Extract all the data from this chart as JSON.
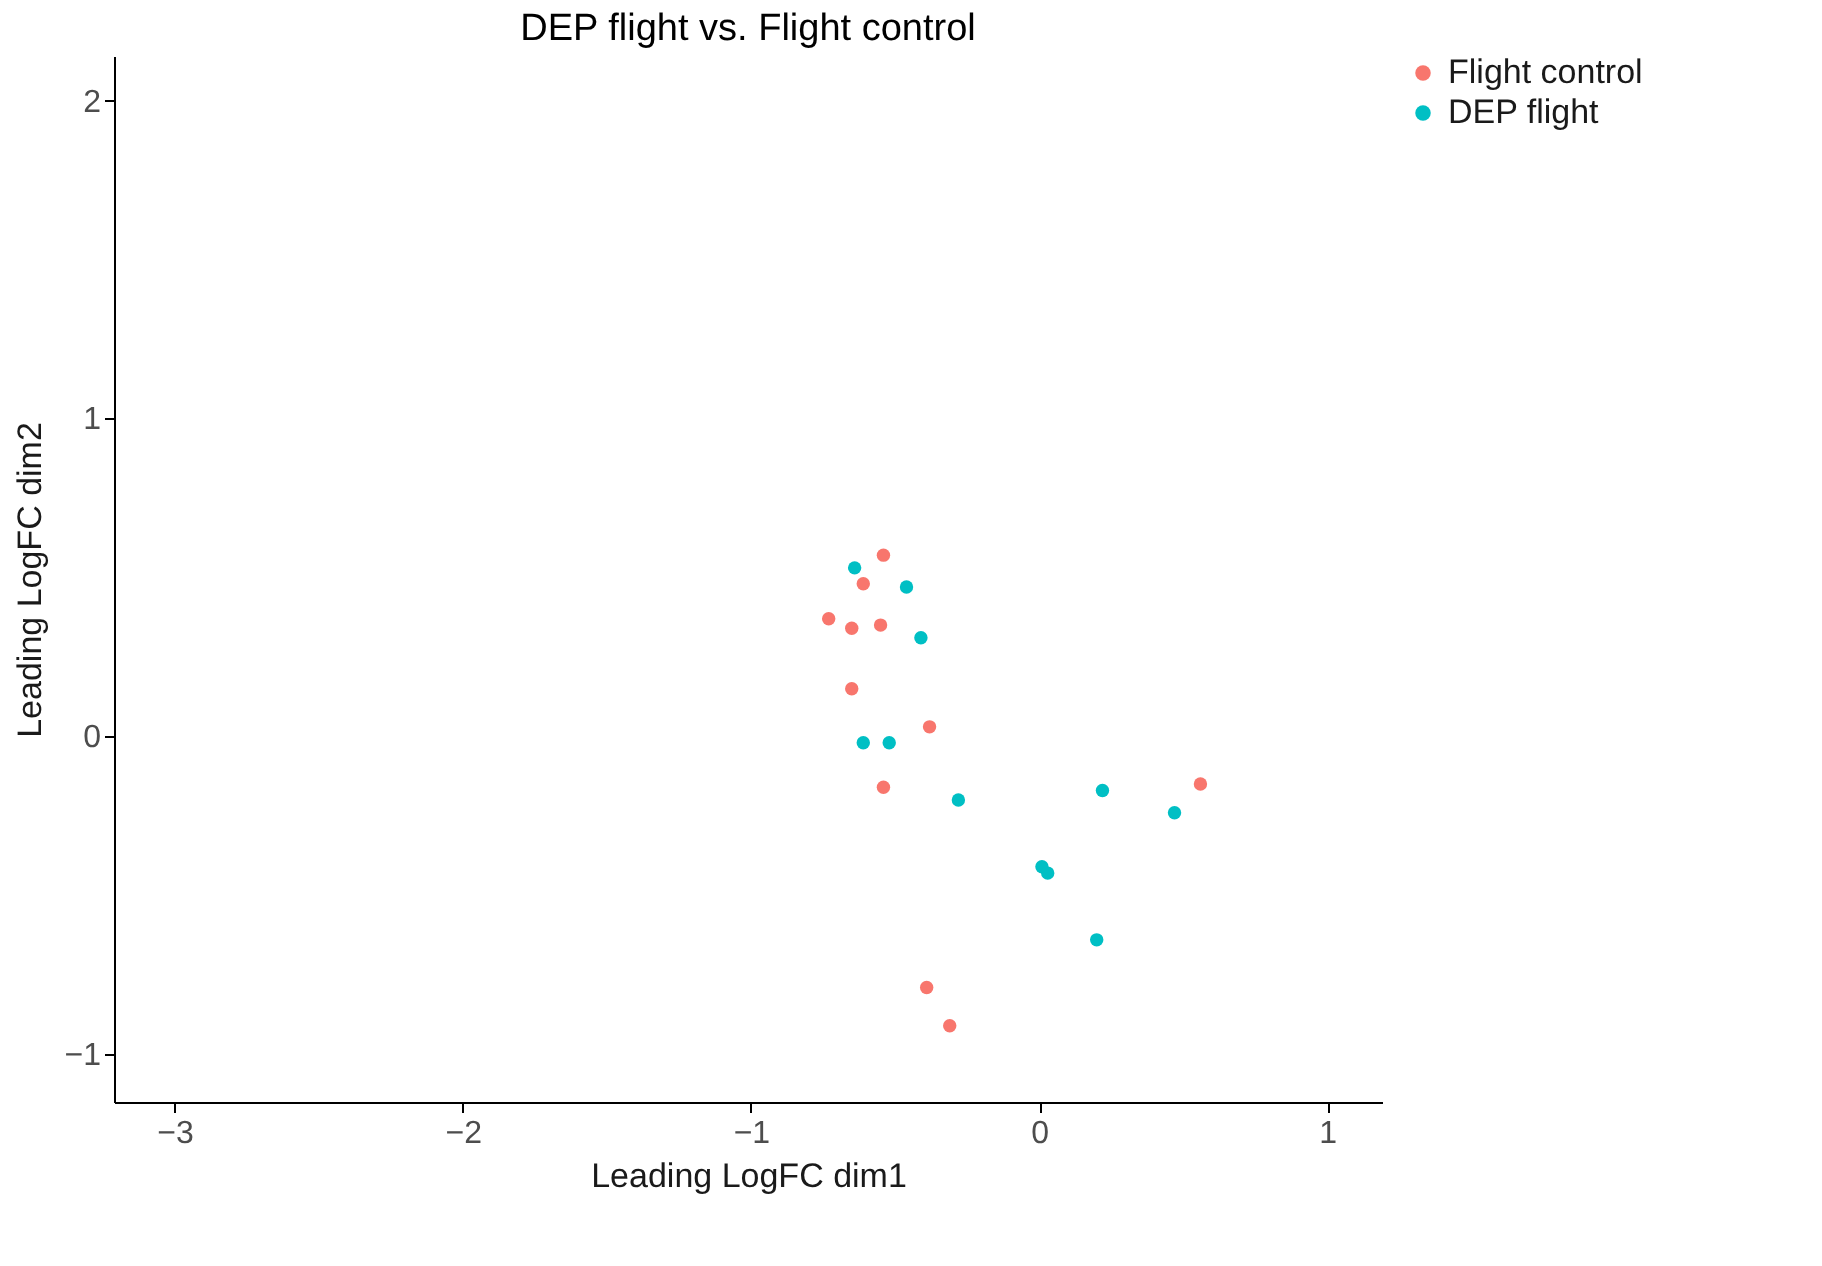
{
  "chart_data": {
    "type": "scatter",
    "title": "DEP flight vs. Flight control",
    "xlabel": "Leading LogFC dim1",
    "ylabel": "Leading LogFC dim2",
    "xlim": [
      -3.21,
      1.19
    ],
    "xticks": [
      -3,
      -2,
      -1,
      0,
      1
    ],
    "ylim": [
      -1.15,
      2.14
    ],
    "yticks": [
      -1,
      0,
      1,
      2
    ],
    "grid": false,
    "legend": "right",
    "marker": "circle",
    "series": [
      {
        "name": "Flight control",
        "color": "#f8766d",
        "x": [
          -0.54,
          -0.61,
          -0.73,
          -0.65,
          -0.55,
          -0.65,
          -0.38,
          -0.54,
          0.56,
          -0.39,
          -0.31
        ],
        "values": [
          0.57,
          0.48,
          0.37,
          0.34,
          0.35,
          0.15,
          0.03,
          -0.16,
          -0.15,
          -0.79,
          -0.91
        ]
      },
      {
        "name": "DEP flight",
        "color": "#00bfc4",
        "x": [
          -0.64,
          -0.46,
          -0.41,
          -0.61,
          -0.52,
          -0.28,
          0.22,
          0.47,
          0.01,
          0.03,
          0.2
        ],
        "values": [
          0.53,
          0.47,
          0.31,
          -0.02,
          -0.02,
          -0.2,
          -0.17,
          -0.24,
          -0.41,
          -0.43,
          -0.64
        ]
      }
    ]
  }
}
